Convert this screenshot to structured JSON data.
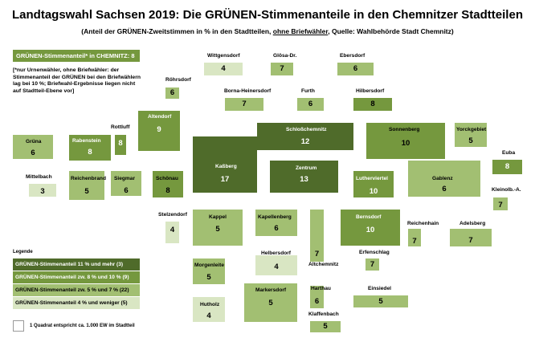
{
  "chart_data": {
    "type": "heatmap",
    "title": "Landtagswahl Sachsen 2019: Die GRÜNEN-Stimmenanteile in den Chemnitzer Stadtteilen",
    "subtitle_parts": [
      "(Anteil der GRÜNEN-Zweitstimmen in % in den Stadtteilen, ",
      "ohne Briefwähler",
      ", Quelle: Wahlbehörde Stadt Chemnitz)"
    ],
    "overall_label": "GRÜNEN-Stimmenanteil* in CHEMNITZ: 8 %",
    "footnote": "[*nur Urnenwähler, ohne Briefwähler: der Stimmenanteil der GRÜNEN bei den Briefwählern lag bei 10 %; Briefwahl-Ergebnisse liegen nicht auf Stadtteil-Ebene vor]",
    "units": "%",
    "colors": {
      "c1": "#4f6b2a",
      "c2": "#75983e",
      "c3": "#a2bf72",
      "c4": "#d9e6c3"
    },
    "districts": [
      {
        "name": "Wittgensdorf",
        "value": 4,
        "cls": "c4"
      },
      {
        "name": "Glösa-Dr.",
        "value": 7,
        "cls": "c3"
      },
      {
        "name": "Ebersdorf",
        "value": 6,
        "cls": "c3"
      },
      {
        "name": "Röhrsdorf",
        "value": 6,
        "cls": "c3"
      },
      {
        "name": "Borna-Heinersdorf",
        "value": 7,
        "cls": "c3"
      },
      {
        "name": "Furth",
        "value": 6,
        "cls": "c3"
      },
      {
        "name": "Hilbersdorf",
        "value": 8,
        "cls": "c2"
      },
      {
        "name": "Altendorf",
        "value": 9,
        "cls": "c2"
      },
      {
        "name": "Rottluff",
        "value": 8,
        "cls": "c2"
      },
      {
        "name": "Rabenstein",
        "value": 8,
        "cls": "c2"
      },
      {
        "name": "Grüna",
        "value": 6,
        "cls": "c3"
      },
      {
        "name": "Schloßchemnitz",
        "value": 12,
        "cls": "c1"
      },
      {
        "name": "Sonnenberg",
        "value": 10,
        "cls": "c2"
      },
      {
        "name": "Yorckgebiet",
        "value": 5,
        "cls": "c3"
      },
      {
        "name": "Euba",
        "value": 8,
        "cls": "c2"
      },
      {
        "name": "Mittelbach",
        "value": 3,
        "cls": "c4"
      },
      {
        "name": "Reichenbrand",
        "value": 5,
        "cls": "c3"
      },
      {
        "name": "Siegmar",
        "value": 6,
        "cls": "c3"
      },
      {
        "name": "Schönau",
        "value": 8,
        "cls": "c2"
      },
      {
        "name": "Kaßberg",
        "value": 17,
        "cls": "c1"
      },
      {
        "name": "Zentrum",
        "value": 13,
        "cls": "c1"
      },
      {
        "name": "Lutherviertel",
        "value": 10,
        "cls": "c2"
      },
      {
        "name": "Gablenz",
        "value": 6,
        "cls": "c3"
      },
      {
        "name": "Kleinolb.-A.",
        "value": 7,
        "cls": "c3"
      },
      {
        "name": "Stelzendorf",
        "value": 4,
        "cls": "c4"
      },
      {
        "name": "Kappel",
        "value": 5,
        "cls": "c3"
      },
      {
        "name": "Kapellenberg",
        "value": 6,
        "cls": "c3"
      },
      {
        "name": "Bernsdorf",
        "value": 10,
        "cls": "c2"
      },
      {
        "name": "Reichenhain",
        "value": 7,
        "cls": "c3"
      },
      {
        "name": "Adelsberg",
        "value": 7,
        "cls": "c3"
      },
      {
        "name": "Helbersdorf",
        "value": 4,
        "cls": "c4"
      },
      {
        "name": "Morgenleite",
        "value": 5,
        "cls": "c3"
      },
      {
        "name": "Altchemnitz",
        "value": 7,
        "cls": "c3"
      },
      {
        "name": "Erfenschlag",
        "value": 7,
        "cls": "c3"
      },
      {
        "name": "Markersdorf",
        "value": 5,
        "cls": "c3"
      },
      {
        "name": "Harthau",
        "value": 6,
        "cls": "c3"
      },
      {
        "name": "Einsiedel",
        "value": 5,
        "cls": "c3"
      },
      {
        "name": "Hutholz",
        "value": 4,
        "cls": "c4"
      },
      {
        "name": "Klaffenbach",
        "value": 5,
        "cls": "c3"
      }
    ],
    "legend": {
      "title": "Legende",
      "items": [
        {
          "label": "GRÜNEN-Stimmenanteil 11 % und mehr  (3)",
          "cls": "c1"
        },
        {
          "label": "GRÜNEN-Stimmenanteil zw. 8 % und 10 % (9)",
          "cls": "c2"
        },
        {
          "label": "GRÜNEN-Stimmenanteil zw. 5 % und 7 % (22)",
          "cls": "c3"
        },
        {
          "label": "GRÜNEN-Stimmenanteil 4 % und weniger (5)",
          "cls": "c4"
        }
      ],
      "scale_note": "1 Quadrat entspricht ca. 1.000 EW im Stadtteil"
    }
  }
}
